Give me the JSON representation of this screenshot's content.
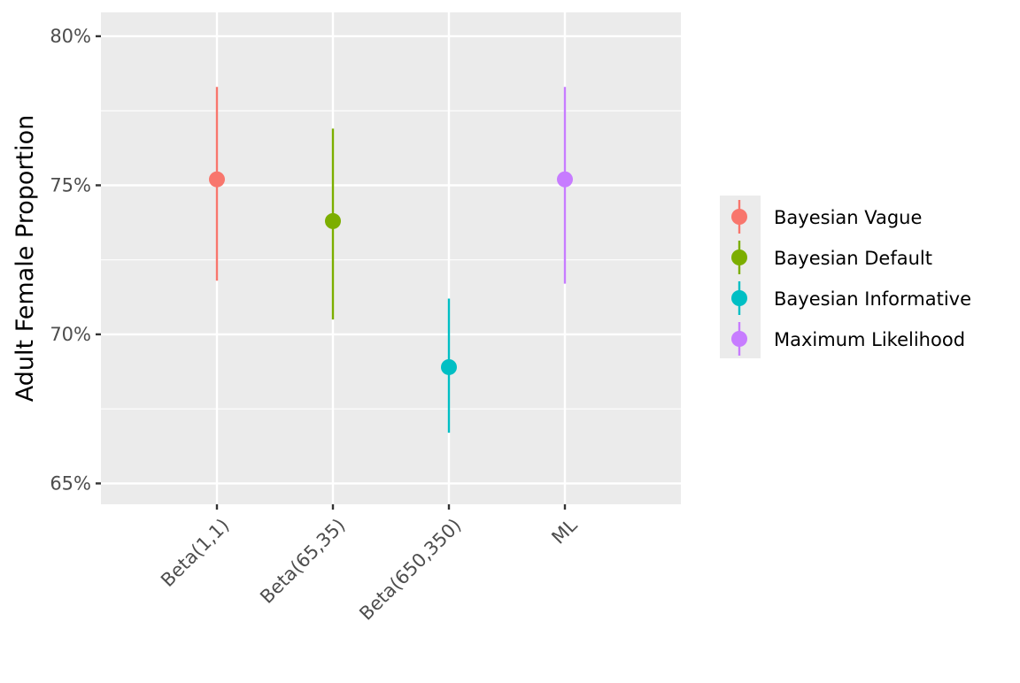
{
  "chart_data": {
    "type": "pointrange",
    "title": "",
    "xlabel": "",
    "ylabel": "Adult Female Proportion",
    "categories": [
      "Beta(1,1)",
      "Beta(65,35)",
      "Beta(650,350)",
      "ML"
    ],
    "ylim": [
      0.643,
      0.808
    ],
    "yticks": [
      0.65,
      0.7,
      0.75,
      0.8
    ],
    "ytick_labels": [
      "65%",
      "70%",
      "75%",
      "80%"
    ],
    "grid": true,
    "legend_position": "right",
    "series": [
      {
        "name": "Bayesian Vague",
        "color": "#F8766D",
        "category": "Beta(1,1)",
        "estimate": 0.752,
        "lower": 0.718,
        "upper": 0.783
      },
      {
        "name": "Bayesian Default",
        "color": "#7CAE00",
        "category": "Beta(65,35)",
        "estimate": 0.738,
        "lower": 0.705,
        "upper": 0.769
      },
      {
        "name": "Bayesian Informative",
        "color": "#00BFC4",
        "category": "Beta(650,350)",
        "estimate": 0.689,
        "lower": 0.667,
        "upper": 0.712
      },
      {
        "name": "Maximum Likelihood",
        "color": "#C77CFF",
        "category": "ML",
        "estimate": 0.752,
        "lower": 0.717,
        "upper": 0.783
      }
    ]
  }
}
